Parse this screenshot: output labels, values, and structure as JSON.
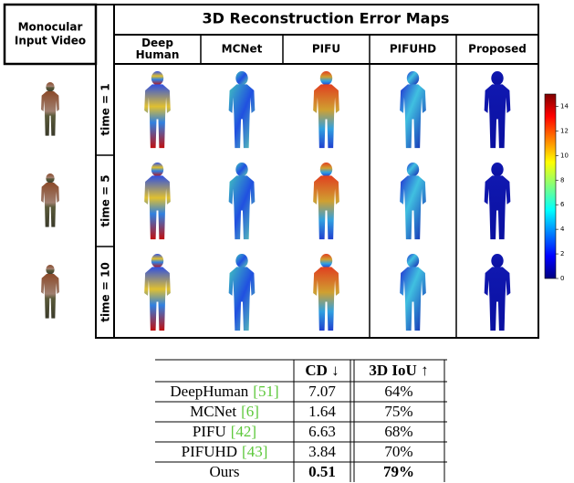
{
  "figure": {
    "left_header": [
      "Monocular",
      "Input Video"
    ],
    "title": "3D Reconstruction Error Maps",
    "methods": [
      [
        "Deep",
        "Human"
      ],
      [
        "MCNet"
      ],
      [
        "PIFU"
      ],
      [
        "PIFUHD"
      ],
      [
        "Proposed"
      ]
    ],
    "times": [
      "time = 1",
      "time = 5",
      "time = 10"
    ],
    "colorbar": {
      "lim": [
        0,
        15
      ],
      "ticks": [
        0,
        2,
        4,
        6,
        8,
        10,
        12,
        14
      ]
    }
  },
  "table": {
    "columns": [
      "CD ↓",
      "3D IoU ↑"
    ],
    "rows": [
      {
        "method": "DeepHuman",
        "ref": "[51]",
        "cd": "7.07",
        "iou": "64%"
      },
      {
        "method": "MCNet",
        "ref": "[6]",
        "cd": "1.64",
        "iou": "75%"
      },
      {
        "method": "PIFU",
        "ref": "[42]",
        "cd": "6.63",
        "iou": "68%"
      },
      {
        "method": "PIFUHD",
        "ref": "[43]",
        "cd": "3.84",
        "iou": "70%"
      },
      {
        "method": "Ours",
        "cd": "0.51",
        "iou": "79%",
        "best": true
      }
    ]
  }
}
